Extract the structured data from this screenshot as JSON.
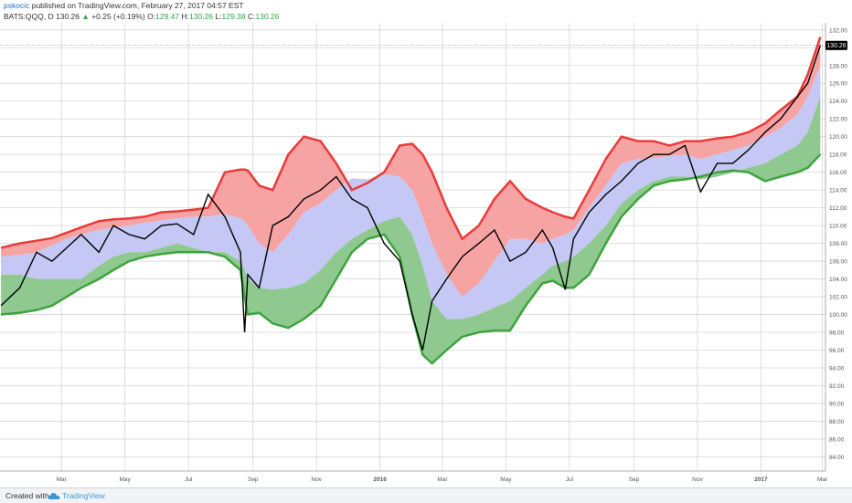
{
  "header": {
    "user": "pskocic",
    "published_text": "published on TradingView.com, February 27, 2017 04:57 EST"
  },
  "ticker": {
    "symbol": "BATS:QQQ, D",
    "last": "130.26",
    "change": "+0.25 (+0.19%)",
    "o_label": "O:",
    "o": "129.47",
    "h_label": "H:",
    "h": "130.26",
    "l_label": "L:",
    "l": "129.38",
    "c_label": "C:",
    "c": "130.26"
  },
  "footer": {
    "created_with": "Created with",
    "brand": "TradingView"
  },
  "colors": {
    "upper_fill": "#f6a3a3",
    "upper_line": "#ea3b3b",
    "mid_fill": "#c5c8f4",
    "lower_fill": "#8fc98f",
    "lower_line": "#3da43d",
    "price_line": "#000000",
    "grid": "#d6d6d6",
    "price_badge": "#000000"
  },
  "chart_data": {
    "type": "line",
    "title": "",
    "xlabel": "",
    "ylabel": "",
    "ylim": [
      82.4,
      132.8
    ],
    "grid": true,
    "x_ticks": [
      "Mar",
      "May",
      "Jul",
      "Sep",
      "Nov",
      "2016",
      "Mar",
      "May",
      "Jul",
      "Sep",
      "Nov",
      "2017",
      "Mar"
    ],
    "y_ticks": [
      "84.00",
      "86.00",
      "88.00",
      "90.00",
      "92.00",
      "94.00",
      "96.00",
      "98.00",
      "100.00",
      "102.00",
      "104.00",
      "106.00",
      "108.00",
      "110.00",
      "112.00",
      "114.00",
      "116.00",
      "118.00",
      "120.00",
      "122.00",
      "124.00",
      "126.00",
      "128.00",
      "130.00",
      "132.00"
    ],
    "last_value_label": "130.26",
    "dates": [
      "2015-01-02",
      "2015-01-20",
      "2015-02-05",
      "2015-02-20",
      "2015-03-06",
      "2015-03-20",
      "2015-04-06",
      "2015-04-20",
      "2015-05-05",
      "2015-05-20",
      "2015-06-05",
      "2015-06-20",
      "2015-07-06",
      "2015-07-20",
      "2015-08-05",
      "2015-08-20",
      "2015-08-24",
      "2015-08-27",
      "2015-09-07",
      "2015-09-20",
      "2015-10-05",
      "2015-10-20",
      "2015-11-05",
      "2015-11-20",
      "2015-12-05",
      "2015-12-20",
      "2016-01-05",
      "2016-01-20",
      "2016-02-01",
      "2016-02-11",
      "2016-02-20",
      "2016-03-05",
      "2016-03-20",
      "2016-04-05",
      "2016-04-20",
      "2016-05-05",
      "2016-05-20",
      "2016-06-05",
      "2016-06-15",
      "2016-06-27",
      "2016-07-05",
      "2016-07-20",
      "2016-08-05",
      "2016-08-20",
      "2016-09-05",
      "2016-09-20",
      "2016-10-05",
      "2016-10-20",
      "2016-11-04",
      "2016-11-20",
      "2016-12-05",
      "2016-12-20",
      "2017-01-05",
      "2017-01-20",
      "2017-02-05",
      "2017-02-15",
      "2017-02-27"
    ],
    "series": [
      {
        "values": [
          107.5,
          108.0,
          108.3,
          108.6,
          109.2,
          109.8,
          110.5,
          110.7,
          110.8,
          111.0,
          111.5,
          111.6,
          111.8,
          112.0,
          116.0,
          116.3,
          116.3,
          116.2,
          114.5,
          114.0,
          118.0,
          120.0,
          119.5,
          117.0,
          114.0,
          114.8,
          116.0,
          119.0,
          119.2,
          118.0,
          116.0,
          112.0,
          108.5,
          110.0,
          113.0,
          115.0,
          113.0,
          112.0,
          111.5,
          111.0,
          110.8,
          114.0,
          117.5,
          120.0,
          119.5,
          119.5,
          119.0,
          119.5,
          119.5,
          119.8,
          120.0,
          120.5,
          121.5,
          123.0,
          124.5,
          127.0,
          131.2
        ]
      },
      {
        "values": [
          106.5,
          106.7,
          107.0,
          107.8,
          108.5,
          109.0,
          109.5,
          109.8,
          110.0,
          110.3,
          110.6,
          110.8,
          111.0,
          111.0,
          111.3,
          110.8,
          110.5,
          110.0,
          108.0,
          107.0,
          109.0,
          111.5,
          112.5,
          114.0,
          115.3,
          115.2,
          115.8,
          115.5,
          114.0,
          111.0,
          108.0,
          104.5,
          102.0,
          103.5,
          106.0,
          108.5,
          108.5,
          108.0,
          108.5,
          109.0,
          109.5,
          112.0,
          114.5,
          117.0,
          117.5,
          117.6,
          117.8,
          118.0,
          117.5,
          118.0,
          118.5,
          119.0,
          120.0,
          121.0,
          122.5,
          124.5,
          128.0
        ]
      },
      {
        "values": [
          104.5,
          104.5,
          104.0,
          104.0,
          104.0,
          104.0,
          105.5,
          106.5,
          107.0,
          107.0,
          107.5,
          108.0,
          107.5,
          107.0,
          107.0,
          106.0,
          105.0,
          104.0,
          103.0,
          102.8,
          103.0,
          103.5,
          105.0,
          107.0,
          108.5,
          109.5,
          110.5,
          111.0,
          109.0,
          105.5,
          101.5,
          99.5,
          99.5,
          100.0,
          100.8,
          101.5,
          103.0,
          104.5,
          105.5,
          106.0,
          106.5,
          108.0,
          110.0,
          112.5,
          114.0,
          115.0,
          115.5,
          115.5,
          115.2,
          115.5,
          116.0,
          116.5,
          117.0,
          118.0,
          119.0,
          120.5,
          124.5
        ]
      },
      {
        "values": [
          100.0,
          100.2,
          100.5,
          101.0,
          102.0,
          103.0,
          104.0,
          105.0,
          106.0,
          106.5,
          106.8,
          107.0,
          107.0,
          107.0,
          106.5,
          105.0,
          102.0,
          100.0,
          100.2,
          99.0,
          98.5,
          99.5,
          101.0,
          104.0,
          107.0,
          108.5,
          109.0,
          106.5,
          100.0,
          95.5,
          94.5,
          96.0,
          97.5,
          98.0,
          98.2,
          98.2,
          101.0,
          103.5,
          103.8,
          103.0,
          103.0,
          104.5,
          108.0,
          111.0,
          113.0,
          114.5,
          115.0,
          115.2,
          115.5,
          116.0,
          116.2,
          116.0,
          115.0,
          115.5,
          116.0,
          116.5,
          118.0
        ]
      },
      {
        "values": [
          101.0,
          103.0,
          107.0,
          106.0,
          107.5,
          109.0,
          107.0,
          110.0,
          109.0,
          108.5,
          110.0,
          110.2,
          109.0,
          113.5,
          111.0,
          107.0,
          98.0,
          104.5,
          103.0,
          110.0,
          111.0,
          113.0,
          114.0,
          115.5,
          113.0,
          112.0,
          108.0,
          106.0,
          100.0,
          96.0,
          101.5,
          104.0,
          106.5,
          108.0,
          109.5,
          106.0,
          107.0,
          109.5,
          107.5,
          102.8,
          108.5,
          111.5,
          113.5,
          115.0,
          117.0,
          118.0,
          118.0,
          119.0,
          113.8,
          117.0,
          117.0,
          118.5,
          120.5,
          122.0,
          124.5,
          126.0,
          130.26
        ]
      }
    ],
    "band_order": [
      "upper",
      "mid-upper",
      "mid-lower",
      "lower",
      "price"
    ]
  }
}
